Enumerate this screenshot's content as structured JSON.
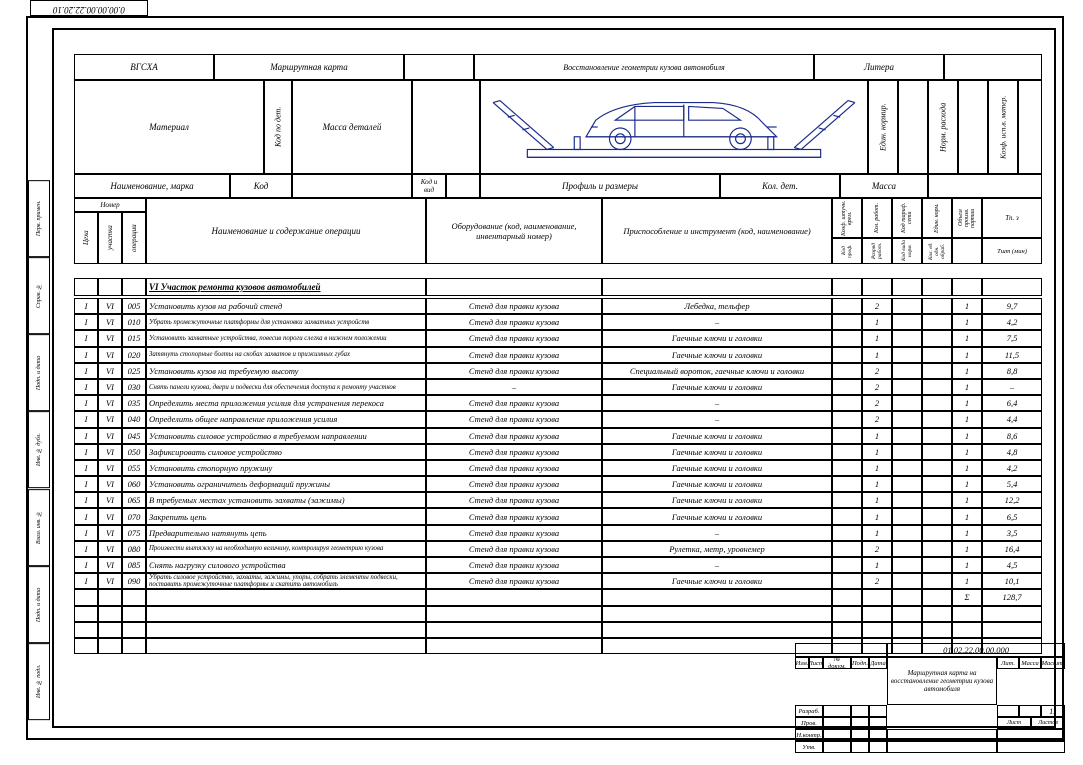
{
  "doc_code": "0.00.00.00.22.20.10",
  "header": {
    "org": "ВГСХА",
    "card_type": "Маршрутная карта",
    "process_title": "Восстановление геометрии кузова автомобиля",
    "litera": "Литера"
  },
  "material_row": {
    "material": "Материал",
    "code_by_det": "Код по дет.",
    "mass_detail": "Масса деталей",
    "unit_norm": "Един. нормир.",
    "norm_rate": "Норм. расхода",
    "coef_use": "Коэф. исп.в. матер."
  },
  "profile_row": {
    "name_mark": "Наименование, марка",
    "code": "Код",
    "code_vid": "Код и вид",
    "profile": "Профиль и размеры",
    "kol_det": "Кол. дет.",
    "mass": "Масса"
  },
  "ops_header": {
    "nomer": "Номер",
    "ceha": "Цеха",
    "uchastka": "участка",
    "operacii": "операции",
    "name_op": "Наименование и содержание операции",
    "equip": "Оборудование (код, наименование, инвентарный номер)",
    "tool": "Приспособление и инструмент (код, наименование)",
    "c1": "Коэф. штучн. врем.",
    "c2": "Кол. работ.",
    "c1b": "Код проф.",
    "c2b": "Разряд работ.",
    "c3": "Код тариф. сети",
    "c4": "Един. норм.",
    "c3b": "Код вида норм.",
    "c4b": "Кол. ед. одн. обраб.",
    "c5": "Объем произв. партии",
    "c6": "Тп. з",
    "c6b": "Тшт (мин)"
  },
  "section_title": "VI Участок ремонта кузовов автомобилей",
  "ops": [
    {
      "c": "I",
      "u": "VI",
      "n": "005",
      "op": "Установить кузов на рабочий стенд",
      "eq": "Стенд для правки кузова",
      "tl": "Лебедка, тельфер",
      "r": "2",
      "k": "1",
      "t": "9,7"
    },
    {
      "c": "I",
      "u": "VI",
      "n": "010",
      "op": "Убрать промежуточные платформы для установки захватных устройств",
      "eq": "Стенд для правки кузова",
      "tl": "–",
      "r": "1",
      "k": "1",
      "t": "4,2"
    },
    {
      "c": "I",
      "u": "VI",
      "n": "015",
      "op": "Установить захватные устройства, повесив пороги слегка в нижнем положении",
      "eq": "Стенд для правки кузова",
      "tl": "Гаечные ключи и головки",
      "r": "1",
      "k": "1",
      "t": "7,5"
    },
    {
      "c": "I",
      "u": "VI",
      "n": "020",
      "op": "Затянуть стопорные болты на скобах захватов и прижимных губах",
      "eq": "Стенд для правки кузова",
      "tl": "Гаечные ключи и головки",
      "r": "1",
      "k": "1",
      "t": "11,5"
    },
    {
      "c": "I",
      "u": "VI",
      "n": "025",
      "op": "Установить кузов на требуемую высоту",
      "eq": "Стенд для правки кузова",
      "tl": "Специальный вороток, гаечные ключи и головки",
      "r": "2",
      "k": "1",
      "t": "8,8"
    },
    {
      "c": "I",
      "u": "VI",
      "n": "030",
      "op": "Снять панели кузова, двери и подвески для обеспечения доступа к ремонту участков",
      "eq": "–",
      "tl": "Гаечные ключи и головки",
      "r": "2",
      "k": "1",
      "t": "–"
    },
    {
      "c": "I",
      "u": "VI",
      "n": "035",
      "op": "Определить места приложения усилия для устранения перекоса",
      "eq": "Стенд для правки кузова",
      "tl": "–",
      "r": "2",
      "k": "1",
      "t": "6,4"
    },
    {
      "c": "I",
      "u": "VI",
      "n": "040",
      "op": "Определить общее направление приложения усилия",
      "eq": "Стенд для правки кузова",
      "tl": "–",
      "r": "2",
      "k": "1",
      "t": "4,4"
    },
    {
      "c": "I",
      "u": "VI",
      "n": "045",
      "op": "Установить силовое устройство в требуемом направлении",
      "eq": "Стенд для правки кузова",
      "tl": "Гаечные ключи и головки",
      "r": "1",
      "k": "1",
      "t": "8,6"
    },
    {
      "c": "I",
      "u": "VI",
      "n": "050",
      "op": "Зафиксировать силовое устройство",
      "eq": "Стенд для правки кузова",
      "tl": "Гаечные ключи и головки",
      "r": "1",
      "k": "1",
      "t": "4,8"
    },
    {
      "c": "I",
      "u": "VI",
      "n": "055",
      "op": "Установить стопорную пружину",
      "eq": "Стенд для правки кузова",
      "tl": "Гаечные ключи и головки",
      "r": "1",
      "k": "1",
      "t": "4,2"
    },
    {
      "c": "I",
      "u": "VI",
      "n": "060",
      "op": "Установить ограничитель деформаций пружины",
      "eq": "Стенд для правки кузова",
      "tl": "Гаечные ключи и головки",
      "r": "1",
      "k": "1",
      "t": "5,4"
    },
    {
      "c": "I",
      "u": "VI",
      "n": "065",
      "op": "В требуемых местах установить захваты (зажимы)",
      "eq": "Стенд для правки кузова",
      "tl": "Гаечные ключи и головки",
      "r": "1",
      "k": "1",
      "t": "12,2"
    },
    {
      "c": "I",
      "u": "VI",
      "n": "070",
      "op": "Закрепить цепь",
      "eq": "Стенд для правки кузова",
      "tl": "Гаечные ключи и головки",
      "r": "1",
      "k": "1",
      "t": "6,5"
    },
    {
      "c": "I",
      "u": "VI",
      "n": "075",
      "op": "Предварительно натянуть цепь",
      "eq": "Стенд для правки кузова",
      "tl": "–",
      "r": "1",
      "k": "1",
      "t": "3,5"
    },
    {
      "c": "I",
      "u": "VI",
      "n": "080",
      "op": "Произвести вытяжку на необходимую величину, контролируя геометрию кузова",
      "eq": "Стенд для правки кузова",
      "tl": "Рулетка, метр, уровнемер",
      "r": "2",
      "k": "1",
      "t": "16,4"
    },
    {
      "c": "I",
      "u": "VI",
      "n": "085",
      "op": "Снять нагрузку силового устройства",
      "eq": "Стенд для правки кузова",
      "tl": "–",
      "r": "1",
      "k": "1",
      "t": "4,5"
    },
    {
      "c": "I",
      "u": "VI",
      "n": "090",
      "op": "Убрать силовое устройство, захваты, зажимы, упоры, собрать элементы подвески, поставить промежуточные платформы и скатить автомобиль",
      "eq": "Стенд для правки кузова",
      "tl": "Гаечные ключи и головки",
      "r": "2",
      "k": "1",
      "t": "10,1"
    }
  ],
  "sum_label": "Σ",
  "sum_val": "128,7",
  "title_block": {
    "code": "01.02.22.00.00.000",
    "title": "Маршрутная карта на восстановление геометрии кузова автомобиля",
    "sheet": "11",
    "h1": "Изм.",
    "h2": "Лист",
    "h3": "№ докум.",
    "h4": "Подп.",
    "h5": "Дата",
    "r1": "Разраб.",
    "r2": "Пров.",
    "r3": "",
    "r4": "Н.контр.",
    "r5": "Утв.",
    "lit": "Лит.",
    "massa": "Масса",
    "scale": "Масшт.",
    "list": "Лист",
    "listov": "Листов"
  },
  "colors": {
    "line": "#000000",
    "accent": "#1a2a8a"
  }
}
